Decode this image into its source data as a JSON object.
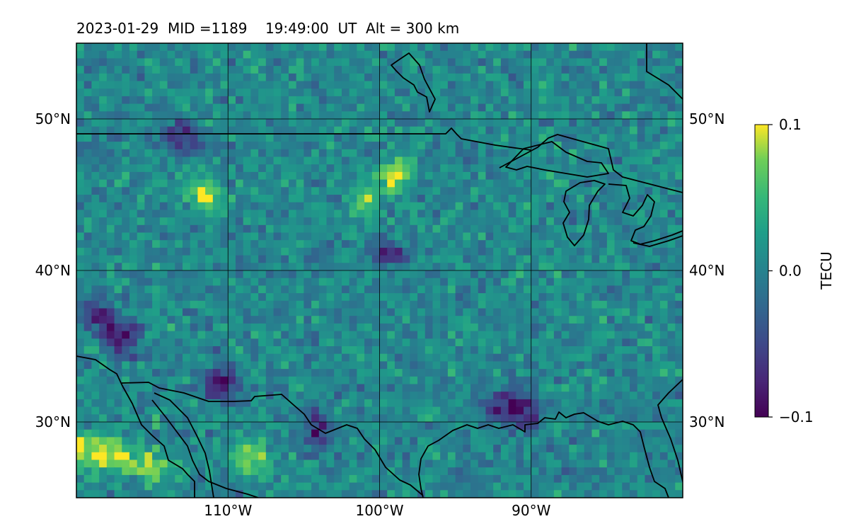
{
  "title": "2023-01-29  MID =1189    19:49:00  UT  Alt = 300 km",
  "chart_data": {
    "type": "heatmap",
    "title": "2023-01-29  MID =1189    19:49:00  UT  Alt = 300 km",
    "projection": "geographic map of central North America (longitude/latitude grid)",
    "lon_range": [
      -120,
      -80
    ],
    "lat_range": [
      25,
      55
    ],
    "x_ticks": [
      {
        "value": -110,
        "label": "110°W"
      },
      {
        "value": -100,
        "label": "100°W"
      },
      {
        "value": -90,
        "label": "90°W"
      }
    ],
    "y_ticks": [
      {
        "value": 30,
        "label": "30°N"
      },
      {
        "value": 40,
        "label": "40°N"
      },
      {
        "value": 50,
        "label": "50°N"
      }
    ],
    "grid": true,
    "colormap": "viridis",
    "colorbar": {
      "label": "TECU",
      "range": [
        -0.1,
        0.1
      ],
      "ticks": [
        {
          "value": 0.1,
          "label": "0.1"
        },
        {
          "value": 0.0,
          "label": "0.0"
        },
        {
          "value": -0.1,
          "label": "−0.1"
        }
      ],
      "placement": "right"
    },
    "field_description": "noisy differential TEC field, mostly near 0.0 TECU (teal/green), with positive patches (yellow ~0.1) near 27–28°N, 115–119°W and 45–47°N, 98–102°W, and negative patches (purple ~-0.1) near 32°N, 110°W and 35–37°N, 115–119°W",
    "hotspots": [
      {
        "lon": -117.5,
        "lat": 27.8,
        "value": 0.1
      },
      {
        "lon": -119.5,
        "lat": 28.3,
        "value": 0.09
      },
      {
        "lon": -115.0,
        "lat": 27.0,
        "value": 0.08
      },
      {
        "lon": -99.0,
        "lat": 46.3,
        "value": 0.09
      },
      {
        "lon": -101.0,
        "lat": 44.5,
        "value": 0.07
      },
      {
        "lon": -111.5,
        "lat": 45.0,
        "value": 0.08
      },
      {
        "lon": -108.5,
        "lat": 27.6,
        "value": 0.08
      },
      {
        "lon": -117.0,
        "lat": 35.5,
        "value": -0.09
      },
      {
        "lon": -118.5,
        "lat": 37.0,
        "value": -0.08
      },
      {
        "lon": -110.5,
        "lat": 32.5,
        "value": -0.1
      },
      {
        "lon": -113.0,
        "lat": 49.0,
        "value": -0.07
      },
      {
        "lon": -99.5,
        "lat": 41.2,
        "value": -0.07
      },
      {
        "lon": -92.0,
        "lat": 31.0,
        "value": -0.07
      },
      {
        "lon": -90.5,
        "lat": 30.8,
        "value": -0.08
      },
      {
        "lon": -104.0,
        "lat": 29.5,
        "value": -0.07
      }
    ]
  }
}
